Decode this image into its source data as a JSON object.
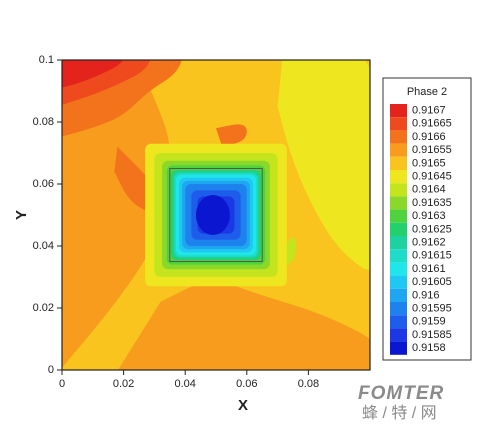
{
  "chart_data": {
    "type": "contour",
    "x_label": "X",
    "y_label": "Y",
    "xlim": [
      0,
      0.1
    ],
    "ylim": [
      0,
      0.1
    ],
    "xticks": [
      0,
      0.02,
      0.04,
      0.06,
      0.08
    ],
    "yticks": [
      0,
      0.02,
      0.04,
      0.06,
      0.08,
      0.1
    ],
    "legend_title": "Phase 2",
    "levels": [
      {
        "value": 0.9167,
        "color": "#e3231c"
      },
      {
        "value": 0.91665,
        "color": "#ee4a1e"
      },
      {
        "value": 0.9166,
        "color": "#f3721c"
      },
      {
        "value": 0.91655,
        "color": "#f89c1e"
      },
      {
        "value": 0.9165,
        "color": "#fac41e"
      },
      {
        "value": 0.91645,
        "color": "#eee61e"
      },
      {
        "value": 0.9164,
        "color": "#c4e41e"
      },
      {
        "value": 0.91635,
        "color": "#8ad82a"
      },
      {
        "value": 0.9163,
        "color": "#4ed23e"
      },
      {
        "value": 0.91625,
        "color": "#22d06e"
      },
      {
        "value": 0.9162,
        "color": "#1ed2a0"
      },
      {
        "value": 0.91615,
        "color": "#1edcc8"
      },
      {
        "value": 0.9161,
        "color": "#1ee6ea"
      },
      {
        "value": 0.91605,
        "color": "#1ec8f2"
      },
      {
        "value": 0.916,
        "color": "#1ea6f0"
      },
      {
        "value": 0.91595,
        "color": "#1e82ee"
      },
      {
        "value": 0.9159,
        "color": "#1e5ceb"
      },
      {
        "value": 0.91585,
        "color": "#1c38e4"
      },
      {
        "value": 0.9158,
        "color": "#0a16d0"
      }
    ]
  },
  "watermark": {
    "brand": "FOMTER",
    "site": "蜂 / 特 / 网"
  }
}
